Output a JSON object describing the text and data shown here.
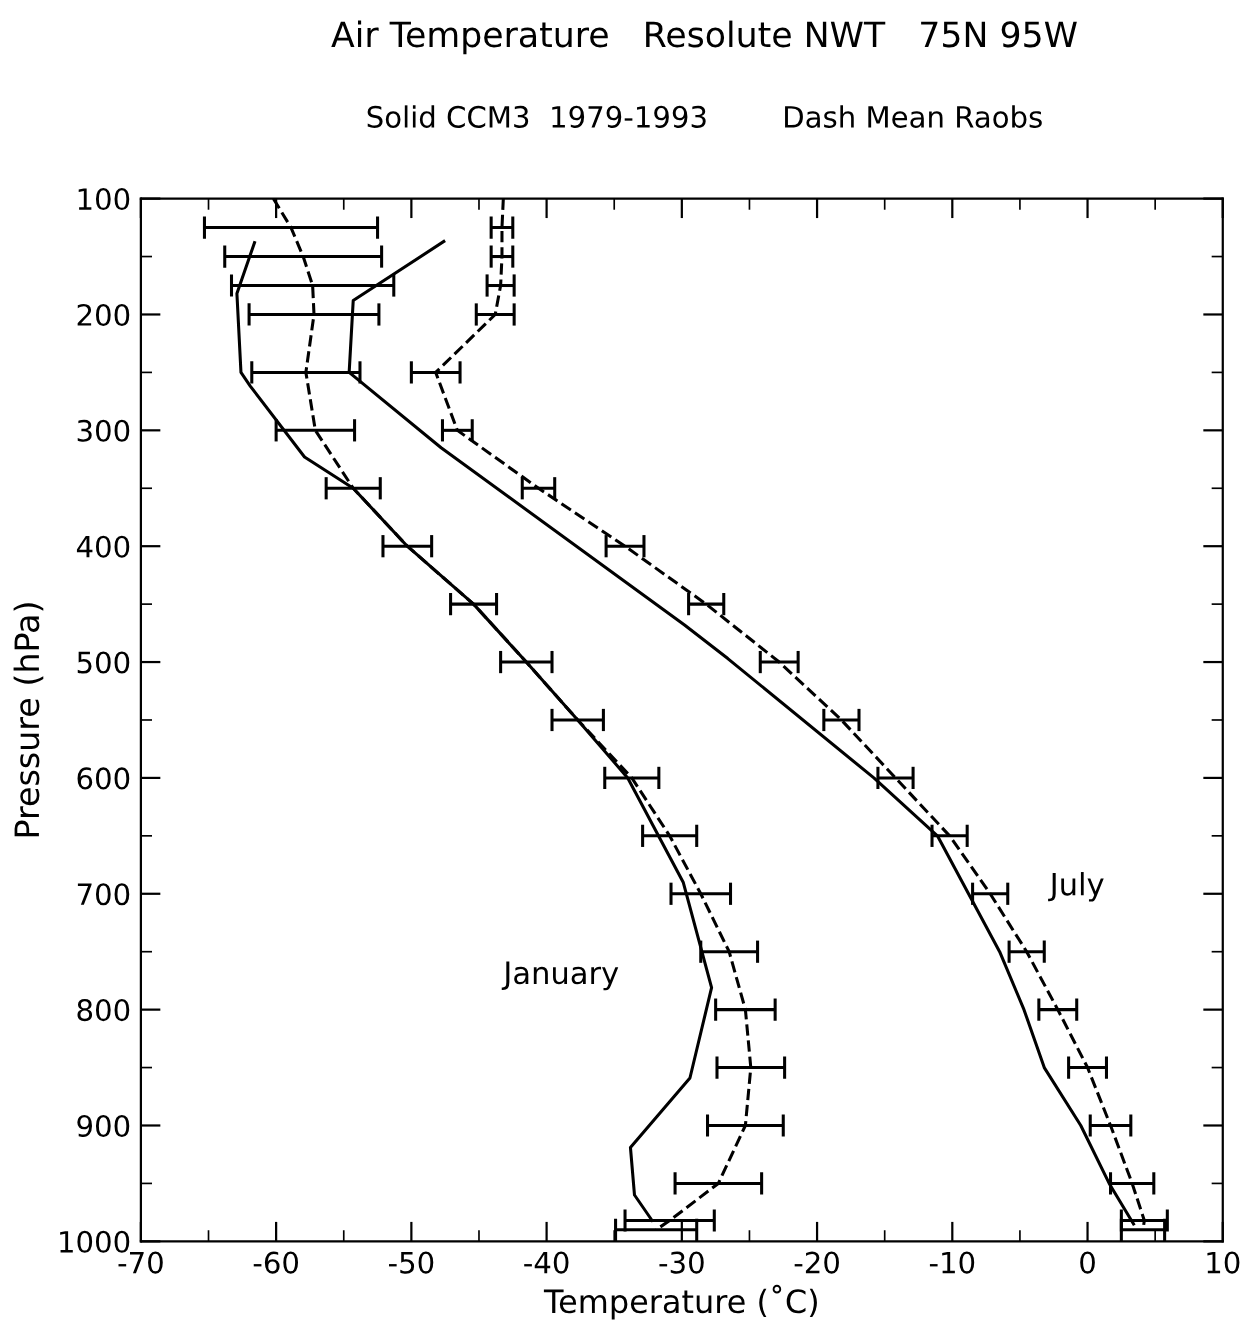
{
  "chart_data": {
    "type": "line",
    "title": "Air Temperature   Resolute NWT   75N 95W",
    "subtitle": "Solid CCM3  1979-1993        Dash Mean Raobs",
    "xlabel": "Temperature (˚C)",
    "ylabel": "Pressure (hPa)",
    "xlim": [
      -70,
      10
    ],
    "xticks": [
      -70,
      -60,
      -50,
      -40,
      -30,
      -20,
      -10,
      0,
      10
    ],
    "ylim": [
      1000,
      100
    ],
    "yticks": [
      100,
      200,
      300,
      400,
      500,
      600,
      700,
      800,
      900,
      1000
    ],
    "grid": false,
    "legend": false,
    "marker": "none",
    "series": [
      {
        "color": "#000000",
        "line_style": "solid",
        "x": [
          -61.6,
          -62.9,
          -62.6,
          -61.9,
          -57.9,
          -54.3,
          -50.3,
          -45.4,
          -41.5,
          -37.7,
          -34.0,
          -29.9,
          -27.8,
          -29.4,
          -33.8,
          -33.5,
          -32.2
        ],
        "values": [
          138,
          182,
          250,
          262,
          323,
          350,
          400,
          450,
          500,
          550,
          600,
          690,
          781,
          859,
          919,
          960,
          982
        ]
      },
      {
        "color": "#000000",
        "line_style": "dashed",
        "x": [
          -60.2,
          -58.9,
          -58.0,
          -57.3,
          -57.2,
          -57.8,
          -57.1,
          -54.3,
          -50.3,
          -45.4,
          -41.5,
          -37.7,
          -33.7,
          -30.9,
          -28.6,
          -26.5,
          -25.3,
          -24.9,
          -25.3,
          -27.3,
          -30.9,
          -31.9
        ],
        "values": [
          100,
          125,
          150,
          175,
          200,
          250,
          300,
          350,
          400,
          450,
          500,
          550,
          600,
          650,
          700,
          750,
          800,
          850,
          900,
          950,
          982,
          990
        ],
        "xerrors": [
          null,
          6.4,
          5.8,
          6,
          4.8,
          4,
          2.9,
          2,
          1.8,
          1.7,
          1.9,
          1.9,
          2,
          2,
          2.2,
          2.1,
          2.2,
          2.5,
          2.8,
          3.2,
          3.3,
          3
        ]
      },
      {
        "color": "#000000",
        "line_style": "solid",
        "x": [
          -47.6,
          -54.3,
          -54.6,
          -47.8,
          -29.8,
          -26.6,
          -15.8,
          -11.1,
          -8.8,
          -6.5,
          -4.7,
          -3.2,
          -0.5,
          1.6,
          3.4
        ],
        "values": [
          137,
          188,
          250,
          315,
          468,
          497,
          600,
          650,
          700,
          750,
          800,
          850,
          900,
          950,
          985
        ]
      },
      {
        "color": "#000000",
        "line_style": "dashed",
        "x": [
          -43.2,
          -43.3,
          -43.3,
          -43.4,
          -43.8,
          -48.2,
          -46.6,
          -40.6,
          -34.2,
          -28.2,
          -22.8,
          -18.2,
          -14.2,
          -10.2,
          -7.2,
          -4.5,
          -2.2,
          0,
          1.7,
          3.3,
          4.2,
          4.1
        ],
        "values": [
          100,
          125,
          150,
          175,
          200,
          250,
          300,
          350,
          400,
          450,
          500,
          550,
          600,
          650,
          700,
          750,
          800,
          850,
          900,
          950,
          982,
          990
        ],
        "xerrors": [
          null,
          0.8,
          0.8,
          1,
          1.4,
          1.8,
          1.1,
          1.2,
          1.4,
          1.3,
          1.4,
          1.3,
          1.3,
          1.3,
          1.3,
          1.3,
          1.4,
          1.4,
          1.5,
          1.6,
          1.7,
          1.6
        ]
      }
    ],
    "annotations": [
      "January",
      "July"
    ]
  }
}
